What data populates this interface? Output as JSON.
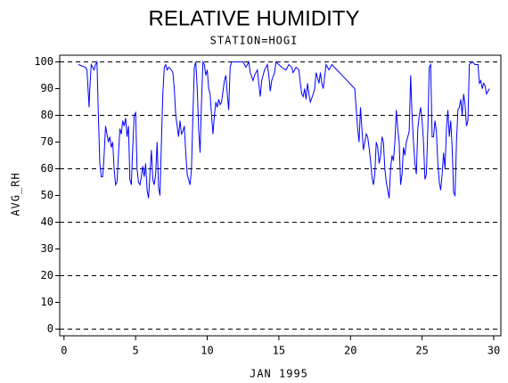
{
  "chart_data": {
    "type": "line",
    "title": "RELATIVE HUMIDITY",
    "subtitle": "STATION=HOGI",
    "x_label": "JAN 1995",
    "y_label": "AVG_RH",
    "xlim": [
      -0.3,
      30.5
    ],
    "ylim": [
      -2.5,
      102.5
    ],
    "xticks": [
      0,
      5,
      10,
      15,
      20,
      25,
      30
    ],
    "yticks": [
      0,
      10,
      20,
      30,
      40,
      50,
      60,
      70,
      80,
      90,
      100
    ],
    "grid_lines": [
      0,
      20,
      40,
      60,
      80,
      100
    ],
    "series": [
      {
        "color": "#0000ff",
        "x": [
          1.0,
          1.5,
          1.6,
          1.7,
          1.75,
          1.8,
          1.9,
          2.0,
          2.1,
          2.2,
          2.3,
          2.4,
          2.5,
          2.6,
          2.7,
          2.8,
          2.9,
          3.0,
          3.1,
          3.2,
          3.3,
          3.4,
          3.5,
          3.6,
          3.7,
          3.8,
          3.9,
          4.0,
          4.1,
          4.2,
          4.3,
          4.4,
          4.5,
          4.6,
          4.7,
          4.8,
          4.9,
          5.0,
          5.1,
          5.2,
          5.3,
          5.4,
          5.5,
          5.6,
          5.7,
          5.8,
          5.9,
          6.0,
          6.1,
          6.2,
          6.3,
          6.4,
          6.5,
          6.6,
          6.7,
          6.8,
          6.9,
          7.0,
          7.1,
          7.2,
          7.3,
          7.5,
          7.6,
          7.7,
          7.8,
          7.9,
          8.0,
          8.1,
          8.2,
          8.3,
          8.4,
          8.5,
          8.6,
          8.7,
          8.8,
          8.9,
          9.0,
          9.1,
          9.2,
          9.3,
          9.4,
          9.5,
          9.6,
          9.7,
          9.8,
          9.9,
          10.0,
          10.1,
          10.2,
          10.3,
          10.4,
          10.5,
          10.6,
          10.7,
          10.8,
          10.9,
          11.0,
          11.2,
          11.3,
          11.4,
          11.5,
          11.6,
          11.7,
          12.0,
          12.5,
          12.7,
          12.9,
          13.0,
          13.2,
          13.3,
          13.5,
          13.6,
          13.7,
          13.8,
          14.0,
          14.2,
          14.3,
          14.4,
          14.5,
          14.7,
          14.8,
          15.0,
          15.2,
          15.5,
          15.7,
          15.9,
          16.0,
          16.2,
          16.4,
          16.5,
          16.6,
          16.7,
          16.8,
          16.9,
          17.0,
          17.1,
          17.2,
          17.4,
          17.5,
          17.6,
          17.7,
          17.8,
          17.9,
          18.0,
          18.1,
          18.3,
          18.5,
          18.7,
          20.3,
          20.5,
          20.6,
          20.7,
          20.8,
          20.9,
          21.0,
          21.1,
          21.2,
          21.3,
          21.4,
          21.5,
          21.6,
          21.7,
          21.8,
          21.9,
          22.0,
          22.1,
          22.2,
          22.3,
          22.4,
          22.5,
          22.6,
          22.7,
          22.8,
          22.9,
          23.0,
          23.1,
          23.2,
          23.3,
          23.4,
          23.5,
          23.6,
          23.7,
          23.8,
          23.9,
          24.0,
          24.1,
          24.2,
          24.3,
          24.4,
          24.5,
          24.6,
          24.7,
          24.8,
          24.9,
          25.0,
          25.1,
          25.2,
          25.3,
          25.4,
          25.5,
          25.6,
          25.7,
          25.8,
          25.9,
          26.0,
          26.1,
          26.2,
          26.3,
          26.4,
          26.5,
          26.6,
          26.7,
          26.8,
          26.9,
          27.0,
          27.1,
          27.2,
          27.3,
          27.4,
          27.5,
          27.6,
          27.7,
          27.8,
          27.9,
          28.0,
          28.1,
          28.2,
          28.3,
          28.5,
          28.7,
          28.9,
          29.0,
          29.1,
          29.2,
          29.3,
          29.4,
          29.5,
          29.6,
          29.7
        ],
        "values": [
          99,
          98,
          97,
          88,
          83,
          90,
          99,
          98,
          97,
          99,
          100,
          80,
          62,
          57,
          57,
          65,
          76,
          73,
          70,
          72,
          68,
          70,
          60,
          54,
          55,
          65,
          75,
          73,
          78,
          76,
          79,
          72,
          76,
          56,
          54,
          68,
          80,
          81,
          60,
          55,
          54,
          57,
          61,
          57,
          62,
          52,
          49,
          58,
          67,
          56,
          54,
          58,
          70,
          53,
          50,
          70,
          88,
          98,
          99,
          97,
          98,
          97,
          96,
          90,
          80,
          76,
          72,
          78,
          73,
          74,
          76,
          66,
          58,
          56,
          54,
          60,
          80,
          98,
          100,
          90,
          75,
          66,
          85,
          100,
          99,
          95,
          97,
          90,
          88,
          80,
          73,
          80,
          85,
          83,
          86,
          84,
          85,
          93,
          95,
          88,
          82,
          98,
          100,
          100,
          100,
          98,
          100,
          96,
          93,
          95,
          97,
          92,
          87,
          93,
          97,
          99,
          95,
          89,
          93,
          96,
          100,
          99,
          98,
          97,
          99,
          98,
          96,
          98,
          97,
          92,
          88,
          87,
          90,
          86,
          92,
          88,
          85,
          88,
          90,
          96,
          94,
          92,
          96,
          92,
          90,
          99,
          97,
          99,
          90,
          75,
          70,
          83,
          75,
          67,
          70,
          73,
          72,
          68,
          63,
          57,
          54,
          58,
          70,
          68,
          62,
          65,
          72,
          70,
          60,
          55,
          52,
          49,
          60,
          65,
          63,
          70,
          82,
          75,
          70,
          54,
          58,
          68,
          65,
          70,
          72,
          74,
          95,
          80,
          70,
          62,
          58,
          75,
          80,
          83,
          78,
          70,
          56,
          58,
          75,
          98,
          99,
          72,
          72,
          78,
          74,
          62,
          55,
          52,
          58,
          66,
          60,
          75,
          82,
          72,
          78,
          68,
          51,
          50,
          70,
          82,
          83,
          86,
          80,
          88,
          84,
          76,
          78,
          99,
          100,
          99,
          99,
          92,
          93,
          90,
          92,
          91,
          88,
          89,
          90
        ]
      }
    ]
  }
}
